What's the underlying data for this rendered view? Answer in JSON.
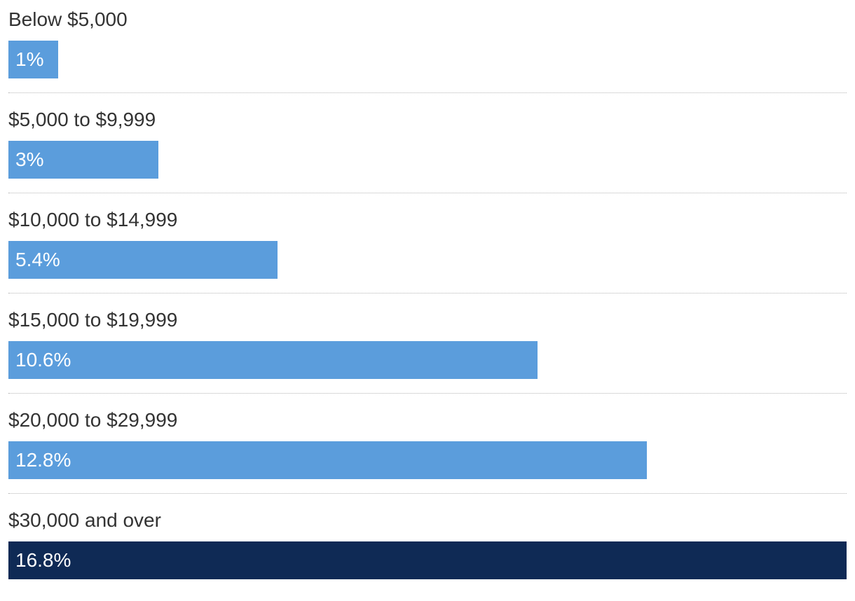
{
  "chart_data": {
    "type": "bar",
    "orientation": "horizontal",
    "categories": [
      "Below $5,000",
      "$5,000 to $9,999",
      "$10,000 to $14,999",
      "$15,000 to $19,999",
      "$20,000 to $29,999",
      "$30,000 and over"
    ],
    "values": [
      1,
      3,
      5.4,
      10.6,
      12.8,
      16.8
    ],
    "value_labels": [
      "1%",
      "3%",
      "5.4%",
      "10.6%",
      "12.8%",
      "16.8%"
    ],
    "unit": "%",
    "title": "",
    "xlabel": "",
    "ylabel": "",
    "xlim": [
      0,
      16.8
    ],
    "grid": false,
    "highlight_index": 5,
    "colors": {
      "bar": "#5b9ddc",
      "highlight": "#0f2a55",
      "label_text": "#333333",
      "bar_text": "#ffffff",
      "divider": "#b5b5b5"
    }
  }
}
